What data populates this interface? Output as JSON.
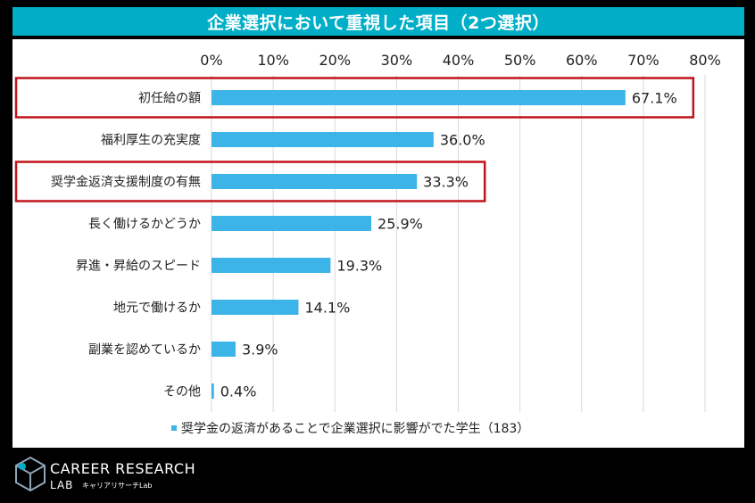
{
  "title": "企業選択において重視した項目（2つ選択）",
  "chart_data": {
    "type": "bar",
    "orientation": "horizontal",
    "xlim": [
      0,
      80
    ],
    "ticks": [
      "0%",
      "10%",
      "20%",
      "30%",
      "40%",
      "50%",
      "60%",
      "70%",
      "80%"
    ],
    "tick_values": [
      0,
      10,
      20,
      30,
      40,
      50,
      60,
      70,
      80
    ],
    "categories": [
      "初任給の額",
      "福利厚生の充実度",
      "奨学金返済支援制度の有無",
      "長く働けるかどうか",
      "昇進・昇給のスピード",
      "地元で働けるか",
      "副業を認めているか",
      "その他"
    ],
    "values": [
      67.1,
      36.0,
      33.3,
      25.9,
      19.3,
      14.1,
      3.9,
      0.4
    ],
    "value_labels": [
      "67.1%",
      "36.0%",
      "33.3%",
      "25.9%",
      "19.3%",
      "14.1%",
      "3.9%",
      "0.4%"
    ],
    "highlighted": [
      "初任給の額",
      "奨学金返済支援制度の有無"
    ],
    "legend": "奨学金の返済があることで企業選択に影響がでた学生（183）",
    "legend_position": "bottom",
    "bar_color": "#3db4e8",
    "highlight_color": "#c0141c",
    "grid": true
  },
  "logo": {
    "title": "CAREER RESEARCH",
    "sub1": "LAB",
    "sub2": "キャリアリサーチLab"
  }
}
